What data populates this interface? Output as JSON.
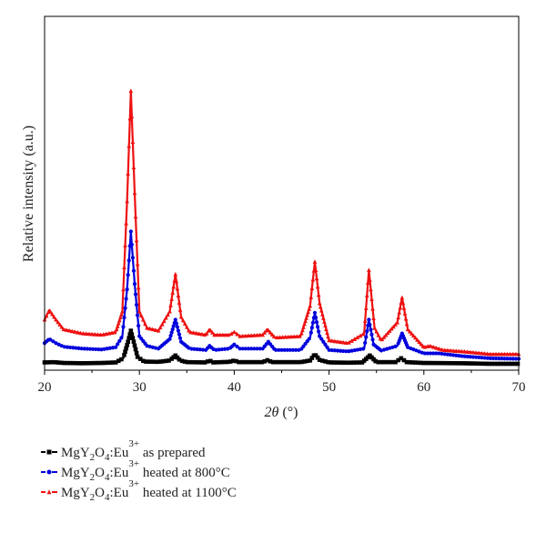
{
  "chart_data": {
    "type": "line",
    "xlabel_symbol": "2θ",
    "xlabel_unit": "(°)",
    "ylabel": "Relative intensity (a.u.)",
    "xlim": [
      20,
      70
    ],
    "ylim": [
      0,
      100
    ],
    "xticks": [
      20,
      30,
      40,
      50,
      60,
      70
    ],
    "grid": false,
    "legend_position": "bottom",
    "series": [
      {
        "compound_base": "MgY",
        "sub1": "2",
        "compound_mid": "O",
        "sub2": "4",
        "compound_end": ":Eu",
        "sup": "3+",
        "condition": "as prepared",
        "color": "#000000",
        "marker": "square",
        "points": [
          [
            20,
            1.5
          ],
          [
            21,
            1.6
          ],
          [
            22,
            1.3
          ],
          [
            24,
            1.2
          ],
          [
            26,
            1.3
          ],
          [
            27.5,
            1.5
          ],
          [
            28.3,
            3
          ],
          [
            28.8,
            9
          ],
          [
            29.1,
            13
          ],
          [
            29.4,
            9
          ],
          [
            29.8,
            3.5
          ],
          [
            30.5,
            1.8
          ],
          [
            32,
            1.7
          ],
          [
            33.2,
            2.2
          ],
          [
            33.8,
            4
          ],
          [
            34.3,
            2.2
          ],
          [
            35,
            1.6
          ],
          [
            37,
            1.5
          ],
          [
            37.4,
            2.2
          ],
          [
            37.8,
            1.5
          ],
          [
            39.5,
            1.7
          ],
          [
            40,
            2.2
          ],
          [
            40.5,
            1.6
          ],
          [
            43,
            1.6
          ],
          [
            43.5,
            2.3
          ],
          [
            44,
            1.6
          ],
          [
            47,
            1.6
          ],
          [
            48,
            2.2
          ],
          [
            48.5,
            4.5
          ],
          [
            49,
            2.4
          ],
          [
            50,
            1.5
          ],
          [
            52,
            1.4
          ],
          [
            53.5,
            1.5
          ],
          [
            54.3,
            4
          ],
          [
            55,
            1.6
          ],
          [
            57,
            1.6
          ],
          [
            57.6,
            3
          ],
          [
            58.2,
            1.6
          ],
          [
            60,
            1.3
          ],
          [
            64,
            1.2
          ],
          [
            67,
            1.0
          ],
          [
            70,
            1.0
          ]
        ]
      },
      {
        "compound_base": "MgY",
        "sub1": "2",
        "compound_mid": "O",
        "sub2": "4",
        "compound_end": ":Eu",
        "sup": "3+",
        "condition": "heated at 800°C",
        "color": "#0000dd",
        "marker": "circle",
        "points": [
          [
            20,
            8.5
          ],
          [
            20.5,
            10
          ],
          [
            21.2,
            8.5
          ],
          [
            22,
            7.2
          ],
          [
            24,
            6.5
          ],
          [
            26,
            6.2
          ],
          [
            27.5,
            7
          ],
          [
            28.2,
            11
          ],
          [
            28.7,
            28
          ],
          [
            29.1,
            49
          ],
          [
            29.5,
            30
          ],
          [
            30,
            11
          ],
          [
            30.8,
            7.5
          ],
          [
            32,
            6.5
          ],
          [
            33.2,
            10
          ],
          [
            33.8,
            17
          ],
          [
            34.4,
            9
          ],
          [
            35.3,
            6.5
          ],
          [
            37,
            6
          ],
          [
            37.4,
            7.5
          ],
          [
            37.9,
            6
          ],
          [
            39.5,
            6.5
          ],
          [
            40,
            8
          ],
          [
            40.6,
            6.5
          ],
          [
            43,
            6.5
          ],
          [
            43.6,
            9
          ],
          [
            44.3,
            6
          ],
          [
            47,
            6
          ],
          [
            48,
            10.5
          ],
          [
            48.5,
            19.5
          ],
          [
            49,
            11
          ],
          [
            50,
            6
          ],
          [
            52,
            5.5
          ],
          [
            53.7,
            6.5
          ],
          [
            54.2,
            17
          ],
          [
            54.7,
            8
          ],
          [
            55.5,
            5.8
          ],
          [
            57.2,
            7.5
          ],
          [
            57.7,
            12
          ],
          [
            58.3,
            7
          ],
          [
            60,
            4.8
          ],
          [
            61.5,
            4.8
          ],
          [
            64,
            3.8
          ],
          [
            67,
            3.0
          ],
          [
            70,
            2.8
          ]
        ]
      },
      {
        "compound_base": "MgY",
        "sub1": "2",
        "compound_mid": "O",
        "sub2": "4",
        "compound_end": ":Eu",
        "sup": "3+",
        "condition": "heated at 1100°C",
        "color": "#ee1111",
        "marker": "triangle",
        "points": [
          [
            20,
            17
          ],
          [
            20.5,
            20.5
          ],
          [
            21.2,
            17
          ],
          [
            22,
            13.5
          ],
          [
            24,
            12
          ],
          [
            26,
            11.5
          ],
          [
            27.5,
            12.5
          ],
          [
            28.2,
            20
          ],
          [
            28.7,
            60
          ],
          [
            29.1,
            100
          ],
          [
            29.5,
            63
          ],
          [
            30,
            20
          ],
          [
            30.8,
            14
          ],
          [
            32,
            13
          ],
          [
            33.2,
            20
          ],
          [
            33.8,
            33.5
          ],
          [
            34.4,
            18
          ],
          [
            35.3,
            12.5
          ],
          [
            37,
            11.5
          ],
          [
            37.4,
            13.5
          ],
          [
            37.9,
            11.5
          ],
          [
            39.5,
            11.5
          ],
          [
            40,
            12.5
          ],
          [
            40.6,
            11
          ],
          [
            43,
            11.5
          ],
          [
            43.5,
            13.5
          ],
          [
            44.3,
            10.5
          ],
          [
            47,
            11
          ],
          [
            48,
            22
          ],
          [
            48.5,
            38
          ],
          [
            49,
            23
          ],
          [
            50,
            9.5
          ],
          [
            52,
            8.5
          ],
          [
            53.7,
            12
          ],
          [
            54.2,
            35
          ],
          [
            54.8,
            14
          ],
          [
            55.5,
            9.5
          ],
          [
            57.2,
            16
          ],
          [
            57.7,
            25
          ],
          [
            58.3,
            13.5
          ],
          [
            60,
            7
          ],
          [
            60.6,
            7.5
          ],
          [
            62,
            6
          ],
          [
            64,
            5.5
          ],
          [
            65,
            5.2
          ],
          [
            67,
            4.5
          ],
          [
            70,
            4.5
          ]
        ]
      }
    ]
  }
}
